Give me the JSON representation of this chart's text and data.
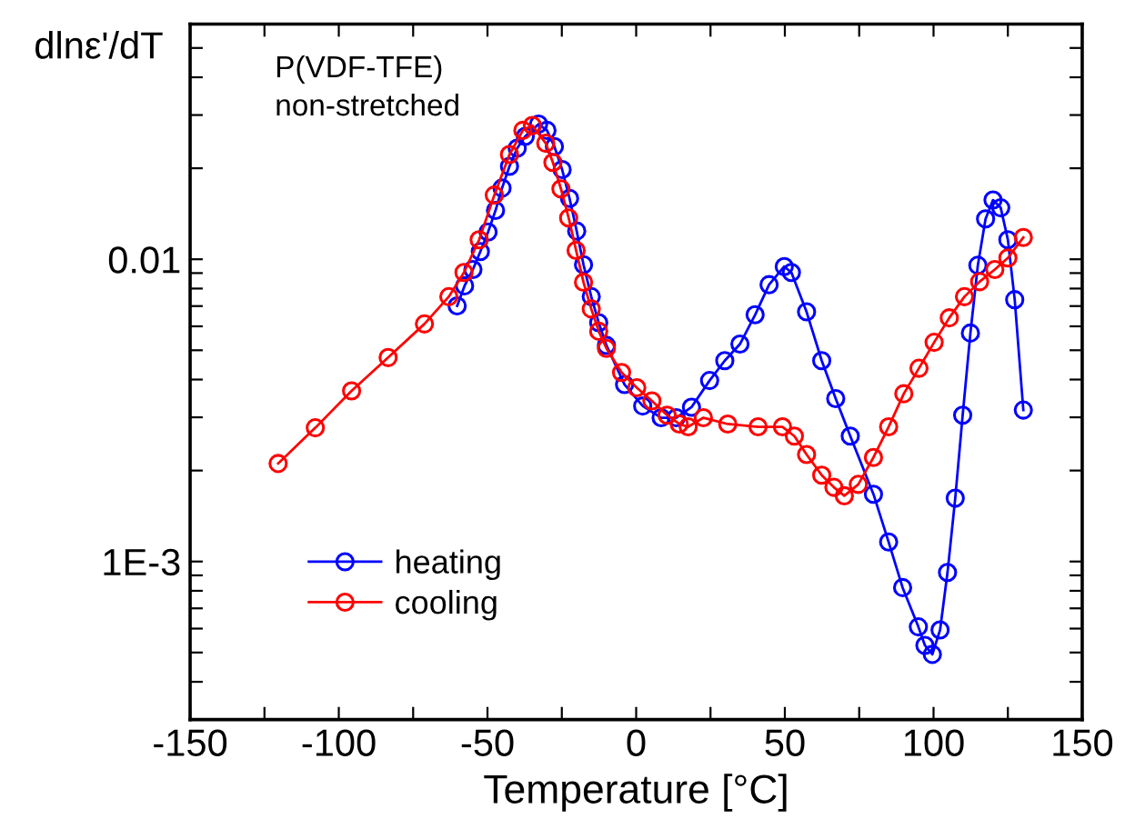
{
  "chart_data": {
    "type": "line",
    "xlabel": "Temperature [°C]",
    "ylabel": "dlnε'/dT",
    "annotations": [
      "P(VDF-TFE)",
      "non-stretched"
    ],
    "log": "y",
    "xlim": [
      -150,
      150
    ],
    "ylim": [
      0.0003,
      0.06
    ],
    "xticks": [
      -150,
      {
        "value": -125,
        "label": null
      },
      -100,
      {
        "value": -75,
        "label": null
      },
      -50,
      {
        "value": -25,
        "label": null
      },
      0,
      {
        "value": 25,
        "label": null
      },
      50,
      {
        "value": 75,
        "label": null
      },
      100,
      {
        "value": 125,
        "label": null
      },
      150
    ],
    "yticks": [
      {
        "value": 0.0004,
        "label": null
      },
      {
        "value": 0.0005,
        "label": null
      },
      {
        "value": 0.0006,
        "label": null
      },
      {
        "value": 0.0007,
        "label": null
      },
      {
        "value": 0.0008,
        "label": null
      },
      {
        "value": 0.0009,
        "label": null
      },
      {
        "value": 0.001,
        "label": "1E-3"
      },
      {
        "value": 0.002,
        "label": null
      },
      {
        "value": 0.003,
        "label": null
      },
      {
        "value": 0.004,
        "label": null
      },
      {
        "value": 0.005,
        "label": null
      },
      {
        "value": 0.006,
        "label": null
      },
      {
        "value": 0.007,
        "label": null
      },
      {
        "value": 0.008,
        "label": null
      },
      {
        "value": 0.009,
        "label": null
      },
      0.01,
      {
        "value": 0.02,
        "label": null
      },
      {
        "value": 0.03,
        "label": null
      },
      {
        "value": 0.04,
        "label": null
      },
      {
        "value": 0.05,
        "label": null
      }
    ],
    "grid": false,
    "legend": "bottom left",
    "marker": "circle",
    "line_style": "solid",
    "series": [
      {
        "name": "heating",
        "color": "#0000ff",
        "x": [
          -60.2,
          -57.7,
          -54.9,
          -52.4,
          -49.8,
          -47.3,
          -45.1,
          -42.6,
          -40,
          -37.3,
          -32.8,
          -30,
          -27.5,
          -24.9,
          -22.4,
          -20,
          -17.7,
          -15.1,
          -12.6,
          -10,
          -3.9,
          2.2,
          8.4,
          13.5,
          18.6,
          24.7,
          29.8,
          34.9,
          40,
          44.7,
          49.8,
          52.2,
          57.3,
          62.4,
          67.1,
          72,
          79.8,
          84.9,
          89.6,
          94.9,
          97.1,
          99.6,
          102.2,
          104.7,
          107.3,
          109.8,
          112.4,
          114.9,
          117.5,
          120,
          122.6,
          125,
          127.3,
          130.2
        ],
        "values": [
          0.00701,
          0.00817,
          0.00925,
          0.0106,
          0.0123,
          0.0145,
          0.0172,
          0.0203,
          0.0233,
          0.0255,
          0.028,
          0.0267,
          0.0236,
          0.0198,
          0.0159,
          0.0124,
          0.00959,
          0.00752,
          0.00617,
          0.00519,
          0.00385,
          0.00327,
          0.00299,
          0.00299,
          0.00324,
          0.00397,
          0.00462,
          0.00524,
          0.00655,
          0.00824,
          0.00946,
          0.00904,
          0.0067,
          0.00462,
          0.00346,
          0.0026,
          0.00167,
          0.00116,
          0.00082,
          0.000608,
          0.000528,
          0.000493,
          0.000594,
          0.00092,
          0.00162,
          0.00305,
          0.0057,
          0.00955,
          0.0136,
          0.0157,
          0.0148,
          0.0116,
          0.00735,
          0.00317
        ]
      },
      {
        "name": "cooling",
        "color": "#ff0000",
        "x": [
          -120.4,
          -107.9,
          -95.7,
          -83.4,
          -71.2,
          -63,
          -57.9,
          -52.8,
          -47.7,
          -42.6,
          -38.1,
          -34.9,
          -30.4,
          -28,
          -25.3,
          -22.7,
          -20.2,
          -17.7,
          -15.1,
          -12.6,
          -10,
          -4.9,
          0.2,
          5.3,
          10.4,
          14.5,
          17.5,
          22.6,
          30.8,
          41,
          49.2,
          53.2,
          57.3,
          62.4,
          66.5,
          70,
          74.7,
          79.8,
          84.9,
          90,
          95.1,
          100.2,
          105.3,
          110.4,
          115.5,
          120.6,
          125,
          130.2
        ],
        "values": [
          0.00211,
          0.00277,
          0.00367,
          0.00473,
          0.00611,
          0.00752,
          0.00904,
          0.0116,
          0.0163,
          0.0222,
          0.0267,
          0.0277,
          0.0242,
          0.0209,
          0.0171,
          0.0137,
          0.0107,
          0.00839,
          0.00685,
          0.00578,
          0.00507,
          0.00422,
          0.00376,
          0.0034,
          0.00305,
          0.00285,
          0.00279,
          0.00299,
          0.00285,
          0.00279,
          0.00279,
          0.0026,
          0.00226,
          0.00193,
          0.00176,
          0.00165,
          0.0018,
          0.00221,
          0.00279,
          0.00359,
          0.00436,
          0.00531,
          0.0064,
          0.00752,
          0.00843,
          0.00925,
          0.0101,
          0.0118
        ]
      }
    ]
  }
}
